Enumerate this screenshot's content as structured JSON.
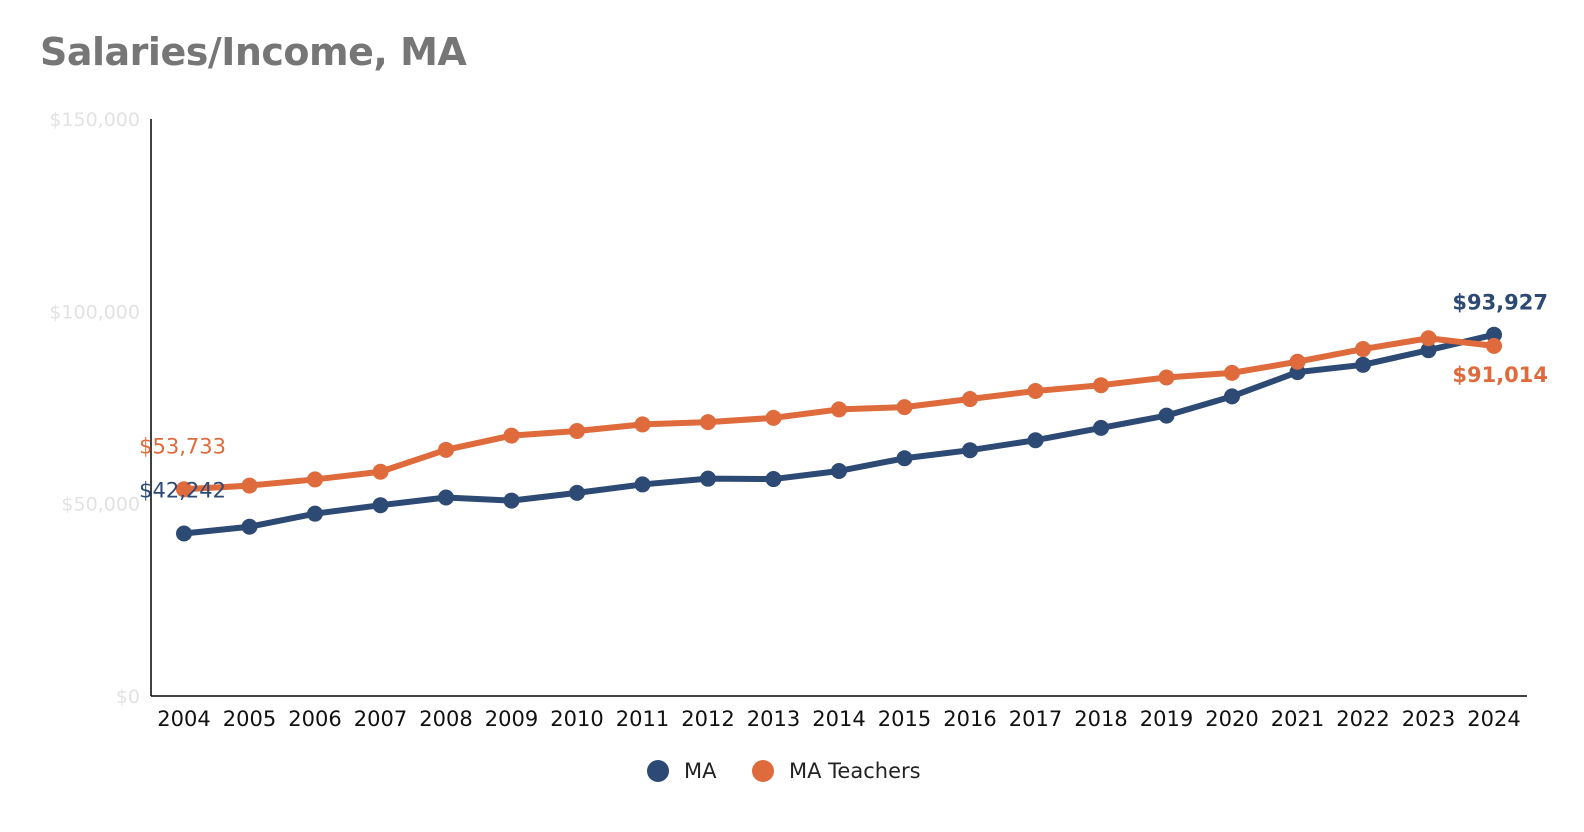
{
  "chart_data": {
    "type": "line",
    "title": "Salaries/Income, MA",
    "xlabel": "",
    "ylabel": "",
    "categories": [
      "2004",
      "2005",
      "2006",
      "2007",
      "2008",
      "2009",
      "2010",
      "2011",
      "2012",
      "2013",
      "2014",
      "2015",
      "2016",
      "2017",
      "2018",
      "2019",
      "2020",
      "2021",
      "2022",
      "2023",
      "2024"
    ],
    "ylim": [
      0,
      150000
    ],
    "y_ticks": [
      0,
      50000,
      100000,
      150000
    ],
    "y_tick_labels": [
      "$0",
      "$50,000",
      "$100,000",
      "$150,000"
    ],
    "grid": false,
    "legend_position": "bottom-center",
    "series": [
      {
        "name": "MA",
        "color": "#2c4a74",
        "values": [
          42242,
          44000,
          47400,
          49600,
          51600,
          50800,
          52800,
          55000,
          56500,
          56400,
          58500,
          61800,
          63900,
          66500,
          69700,
          72900,
          77900,
          84200,
          86100,
          89900,
          93927
        ],
        "labels": [
          {
            "index": 0,
            "text": "$42,242",
            "bold": false
          },
          {
            "index": 20,
            "text": "$93,927",
            "bold": true
          }
        ]
      },
      {
        "name": "MA Teachers",
        "color": "#df6a3c",
        "values": [
          53733,
          54700,
          56300,
          58300,
          64000,
          67700,
          68900,
          70600,
          71200,
          72300,
          74500,
          75100,
          77200,
          79300,
          80800,
          82800,
          84000,
          86900,
          90200,
          93000,
          91014
        ],
        "labels": [
          {
            "index": 0,
            "text": "$53,733",
            "bold": false
          },
          {
            "index": 20,
            "text": "$91,014",
            "bold": true
          }
        ]
      }
    ]
  }
}
